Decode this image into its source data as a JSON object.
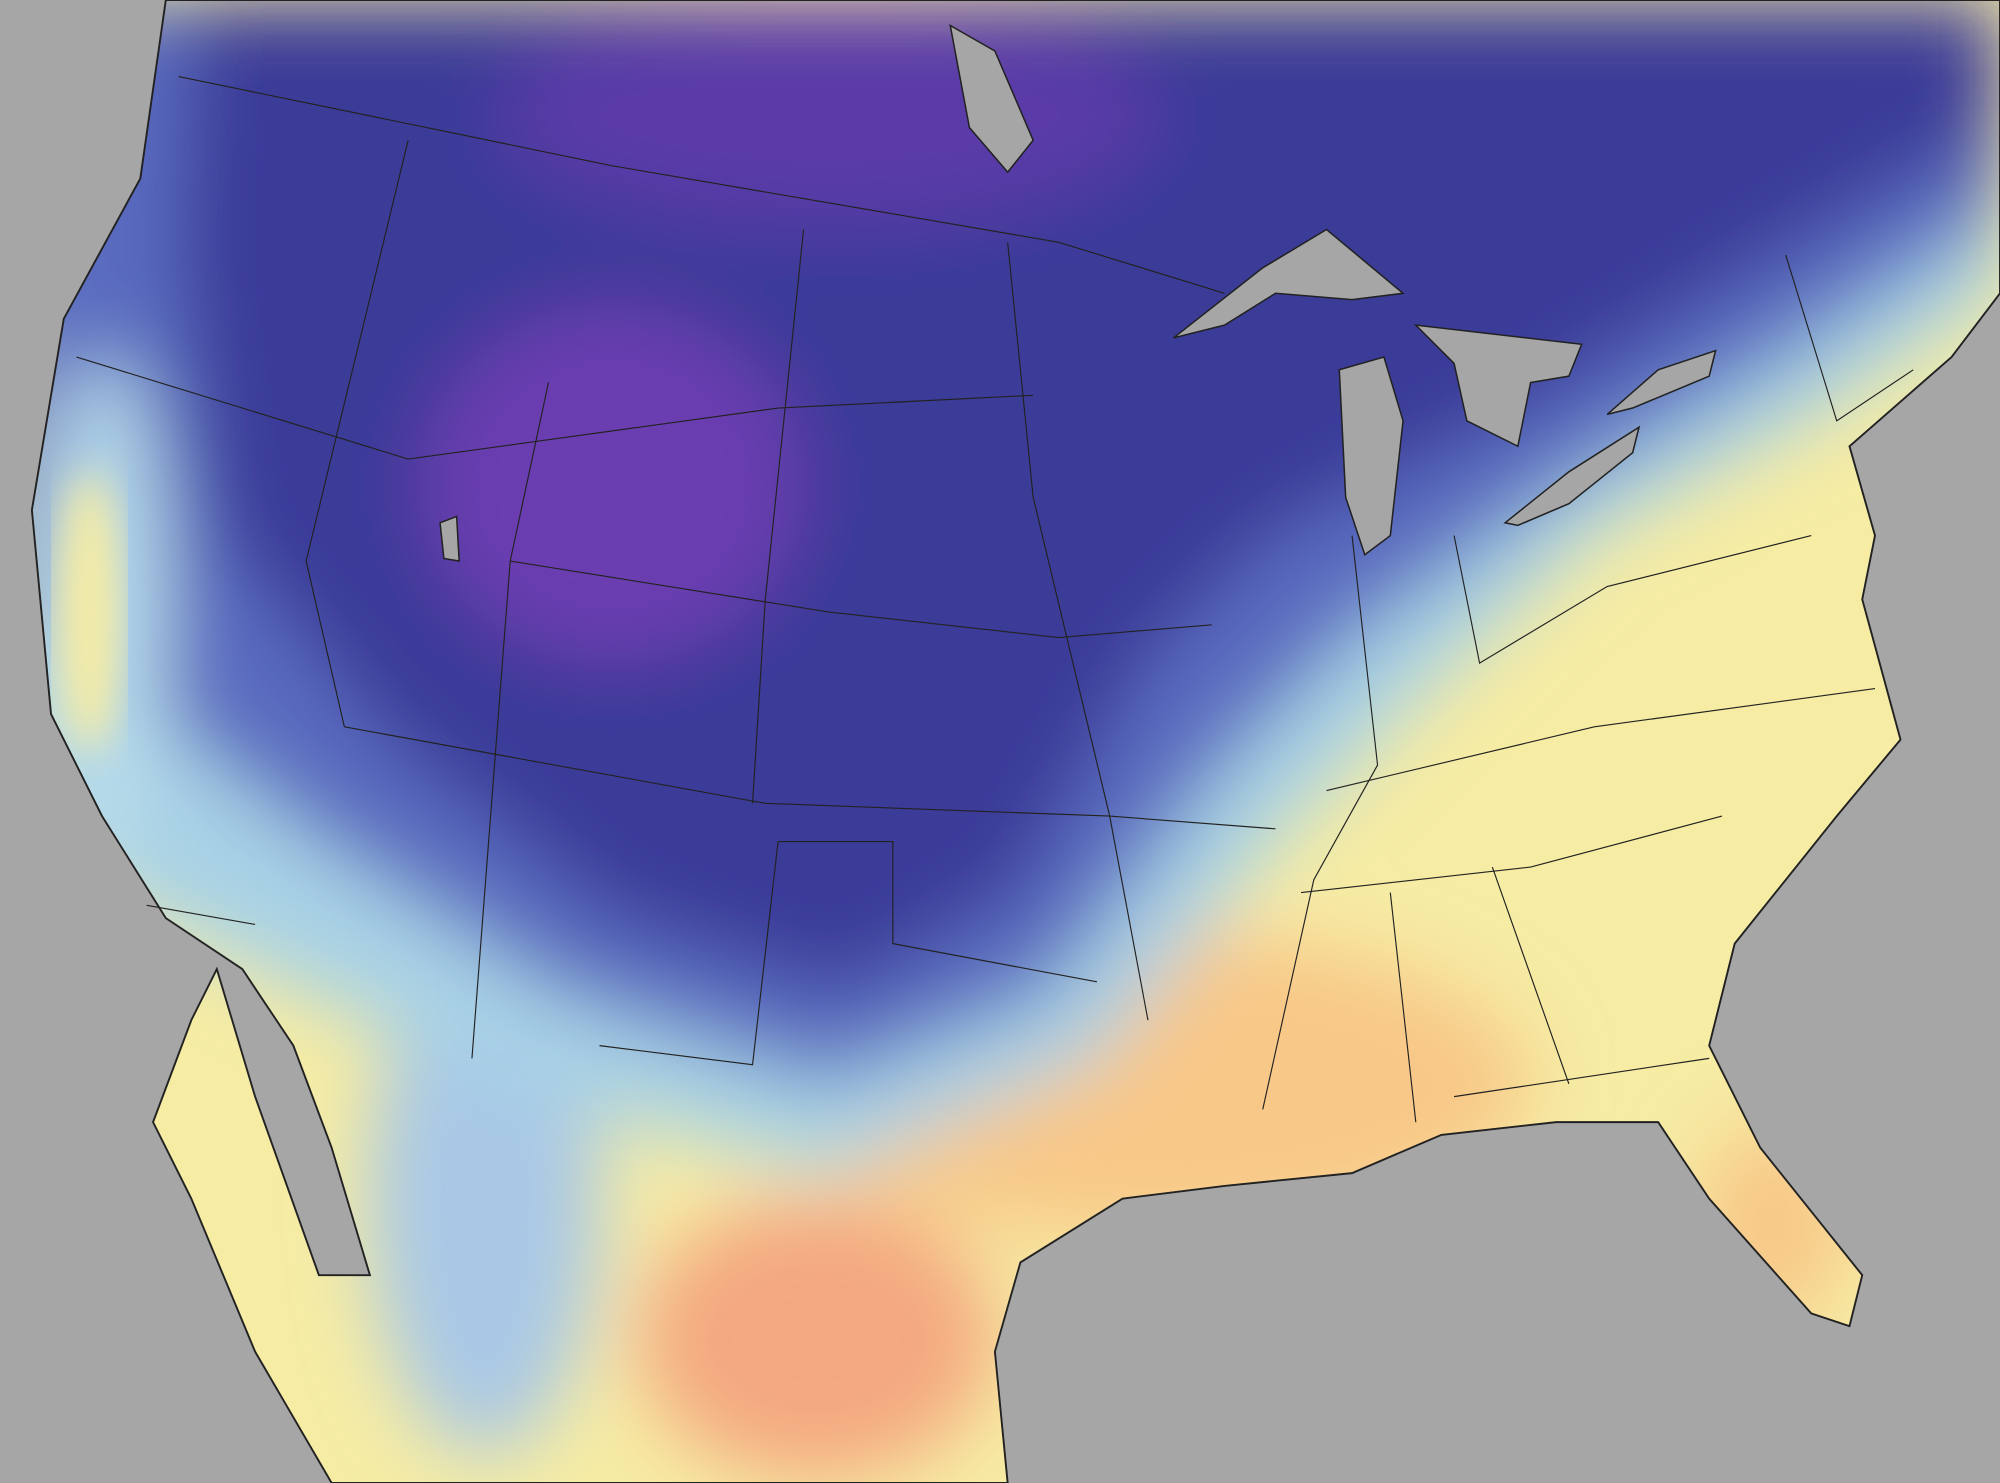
{
  "map": {
    "region": "contiguous-united-states-temperature",
    "colors": {
      "background": "#a6a6a6",
      "water": "#a6a6a6",
      "coldest": "#6a3cb0",
      "cold": "#3a3a98",
      "cool": "#5a6cc0",
      "mild": "#a8d2e6",
      "warm": "#f6eca4",
      "warmer": "#f8c888",
      "warmest": "#f4a080",
      "borders": "#222222"
    }
  }
}
